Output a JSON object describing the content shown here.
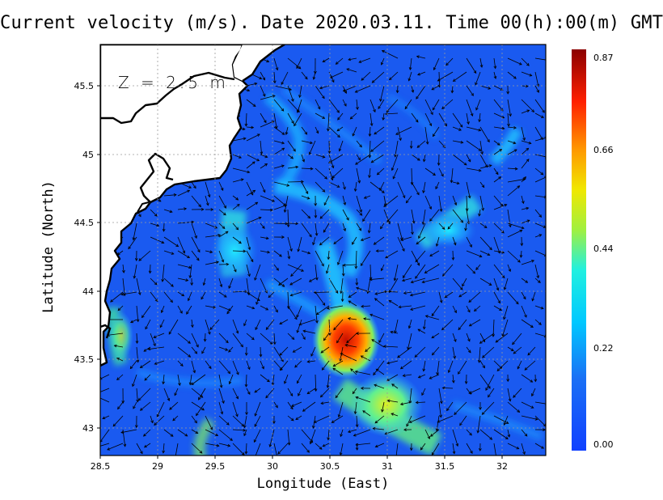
{
  "title": "Current velocity (m/s). Date 2020.03.11. Time 00(h):00(m) GMT",
  "depth_label": "Z = 2.5 m",
  "xlabel": "Longitude (East)",
  "ylabel": "Latitude (North)",
  "x_ticks": [
    "28.5",
    "29",
    "29.5",
    "30",
    "30.5",
    "31",
    "31.5",
    "32"
  ],
  "y_ticks": [
    "43",
    "43.5",
    "44",
    "44.5",
    "45",
    "45.5"
  ],
  "colorbar": {
    "ticks": [
      "0.87",
      "0.66",
      "0.44",
      "0.22",
      "0.00"
    ],
    "min": 0.0,
    "max": 0.87
  },
  "colors": {
    "land": "#ffffff",
    "coast": "#000000",
    "low_speed": "#1a5af0"
  },
  "chart_data": {
    "type": "heatmap",
    "quantity": "current velocity",
    "xlim": [
      28.5,
      32.4
    ],
    "ylim": [
      42.8,
      45.8
    ],
    "grid": true,
    "legend": "right",
    "max_speed_region": {
      "lon": 30.6,
      "lat": 43.65,
      "value": 0.87
    }
  }
}
